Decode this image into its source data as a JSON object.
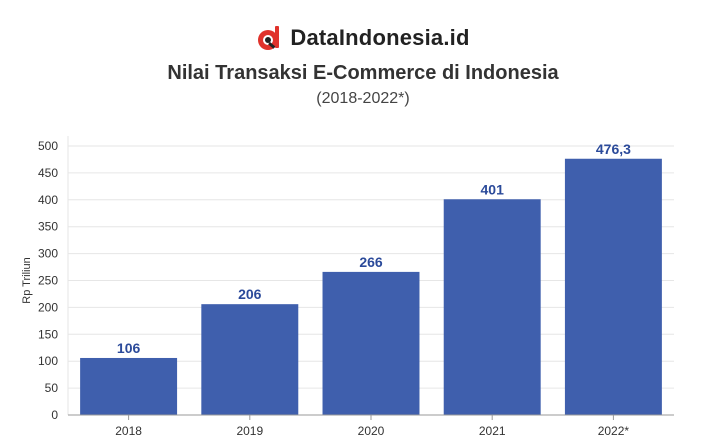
{
  "brand": {
    "name": "DataIndonesia.id",
    "logo_icon": "dataindonesia-logo-icon",
    "logo_colors": [
      "#e0322b",
      "#222222"
    ]
  },
  "chart_data": {
    "type": "bar",
    "title": "Nilai Transaksi E-Commerce di Indonesia",
    "subtitle": "(2018-2022*)",
    "xlabel": "",
    "ylabel": "Rp Triliun",
    "categories": [
      "2018",
      "2019",
      "2020",
      "2021",
      "2022*"
    ],
    "values": [
      106,
      206,
      266,
      401,
      476.3
    ],
    "data_labels": [
      "106",
      "206",
      "266",
      "401",
      "476,3"
    ],
    "ylim": [
      0,
      500
    ],
    "yticks": [
      0,
      50,
      100,
      150,
      200,
      250,
      300,
      350,
      400,
      450,
      500
    ],
    "grid": true,
    "bar_color": "#3f5fad",
    "label_color": "#2b4a9a"
  }
}
